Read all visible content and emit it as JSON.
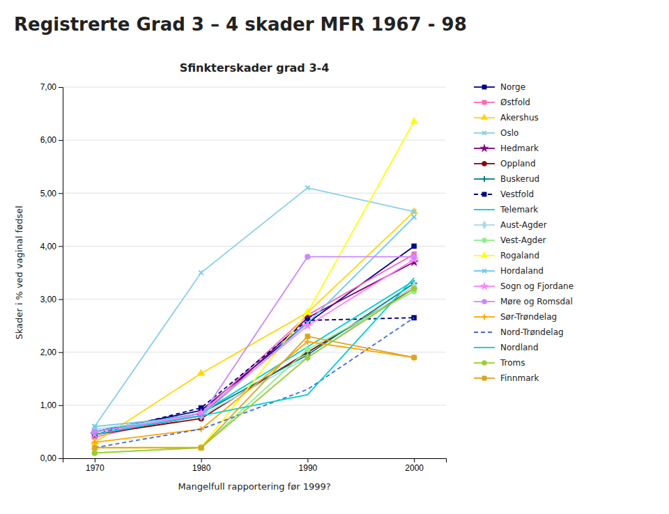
{
  "chart_data": {
    "type": "line",
    "title": "Registrerte Grad 3 – 4 skader MFR 1967 - 98",
    "subtitle": "Sfinkterskader grad 3-4",
    "xlabel": "Mangelfull rapportering før 1999?",
    "ylabel": "Skader i % ved vaginal fødsel",
    "x": [
      1970,
      1980,
      1990,
      2000
    ],
    "xlim": [
      1967,
      2003
    ],
    "xticks": [
      1970,
      1980,
      1990,
      2000
    ],
    "ylim": [
      0,
      7.0
    ],
    "yticks": [
      {
        "value": 0.0,
        "label": "0,00"
      },
      {
        "value": 1.0,
        "label": "1,00"
      },
      {
        "value": 2.0,
        "label": "2,00"
      },
      {
        "value": 3.0,
        "label": "3,00"
      },
      {
        "value": 4.0,
        "label": "4,00"
      },
      {
        "value": 5.0,
        "label": "5,00"
      },
      {
        "value": 6.0,
        "label": "6,00"
      },
      {
        "value": 7.0,
        "label": "7,00"
      }
    ],
    "grid": true,
    "legend": "right",
    "series": [
      {
        "name": "Norge",
        "color": "#00008B",
        "marker": "square",
        "line_style": "solid",
        "values": [
          0.5,
          0.9,
          2.55,
          4.0
        ]
      },
      {
        "name": "Østfold",
        "color": "#FF69B4",
        "marker": "square",
        "line_style": "solid",
        "values": [
          0.4,
          0.85,
          2.7,
          3.85
        ]
      },
      {
        "name": "Akershus",
        "color": "#FFD700",
        "marker": "triangle",
        "line_style": "solid",
        "values": [
          0.3,
          1.6,
          2.75,
          4.65
        ]
      },
      {
        "name": "Oslo",
        "color": "#87CEEB",
        "marker": "x",
        "line_style": "solid",
        "values": [
          0.6,
          3.5,
          5.1,
          4.65
        ]
      },
      {
        "name": "Hedmark",
        "color": "#800080",
        "marker": "star",
        "line_style": "solid",
        "values": [
          0.45,
          0.8,
          2.65,
          3.7
        ]
      },
      {
        "name": "Oppland",
        "color": "#8B0000",
        "marker": "circle",
        "line_style": "solid",
        "values": [
          0.45,
          0.75,
          2.0,
          3.2
        ]
      },
      {
        "name": "Buskerud",
        "color": "#008080",
        "marker": "plus",
        "line_style": "solid",
        "values": [
          0.5,
          0.85,
          1.95,
          3.3
        ]
      },
      {
        "name": "Vestfold",
        "color": "#000080",
        "marker": "square",
        "line_style": "dashed",
        "values": [
          0.45,
          0.95,
          2.6,
          2.65
        ]
      },
      {
        "name": "Telemark",
        "color": "#00CED1",
        "marker": "none",
        "line_style": "solid",
        "values": [
          0.5,
          0.85,
          2.1,
          3.35
        ]
      },
      {
        "name": "Aust-Agder",
        "color": "#ADD8E6",
        "marker": "diamond",
        "line_style": "solid",
        "values": [
          0.55,
          0.8,
          1.9,
          3.25
        ]
      },
      {
        "name": "Vest-Agder",
        "color": "#90EE90",
        "marker": "circle",
        "line_style": "solid",
        "values": [
          0.1,
          0.2,
          2.05,
          3.15
        ]
      },
      {
        "name": "Rogaland",
        "color": "#FFFF00",
        "marker": "triangle",
        "line_style": "solid",
        "values": [
          0.2,
          0.2,
          2.75,
          6.35
        ]
      },
      {
        "name": "Hordaland",
        "color": "#6EC6EC",
        "marker": "x",
        "line_style": "solid",
        "values": [
          0.6,
          0.8,
          2.55,
          4.55
        ]
      },
      {
        "name": "Sogn og Fjordane",
        "color": "#FF80FF",
        "marker": "star",
        "line_style": "solid",
        "values": [
          0.45,
          0.85,
          2.5,
          3.75
        ]
      },
      {
        "name": "Møre og Romsdal",
        "color": "#CC88FF",
        "marker": "circle",
        "line_style": "solid",
        "values": [
          0.5,
          0.8,
          3.8,
          3.8
        ]
      },
      {
        "name": "Sør-Trøndelag",
        "color": "#FFA500",
        "marker": "plus",
        "line_style": "solid",
        "values": [
          0.3,
          0.55,
          2.2,
          1.9
        ]
      },
      {
        "name": "Nord-Trøndelag",
        "color": "#4169E1",
        "marker": "none",
        "line_style": "dashed",
        "values": [
          0.2,
          0.55,
          1.3,
          2.65
        ]
      },
      {
        "name": "Nordland",
        "color": "#00CED1",
        "marker": "none",
        "line_style": "solid",
        "values": [
          0.45,
          0.8,
          1.2,
          3.4
        ]
      },
      {
        "name": "Troms",
        "color": "#9ACD32",
        "marker": "circle",
        "line_style": "solid",
        "values": [
          0.1,
          0.2,
          1.9,
          3.2
        ]
      },
      {
        "name": "Finnmark",
        "color": "#DAA520",
        "marker": "square",
        "line_style": "solid",
        "values": [
          0.2,
          0.2,
          2.3,
          1.9
        ]
      }
    ]
  }
}
